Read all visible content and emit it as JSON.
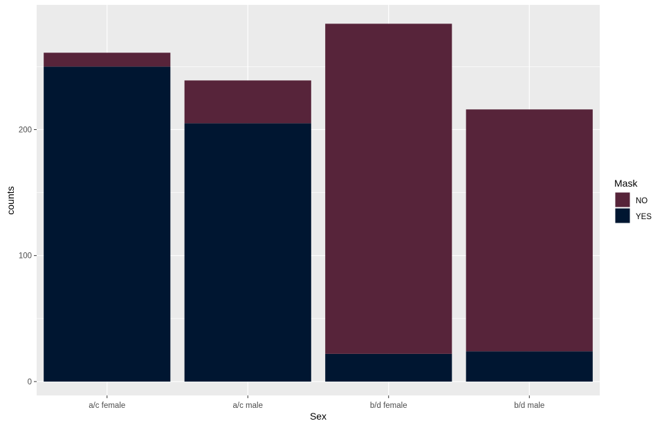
{
  "chart_data": {
    "type": "bar",
    "stacked": true,
    "categories": [
      "a/c female",
      "a/c male",
      "b/d female",
      "b/d male"
    ],
    "series": [
      {
        "name": "NO",
        "values": [
          11,
          34,
          262,
          192
        ],
        "color": "#57243a"
      },
      {
        "name": "YES",
        "values": [
          250,
          205,
          22,
          24
        ],
        "color": "#001631"
      }
    ],
    "xlabel": "Sex",
    "ylabel": "counts",
    "ylim": [
      -11,
      299
    ],
    "yticks": [
      0,
      100,
      200
    ],
    "legend": {
      "title": "Mask",
      "position": "right"
    },
    "grid": true,
    "panel_background": "#ebebeb",
    "grid_color": "#ffffff"
  }
}
